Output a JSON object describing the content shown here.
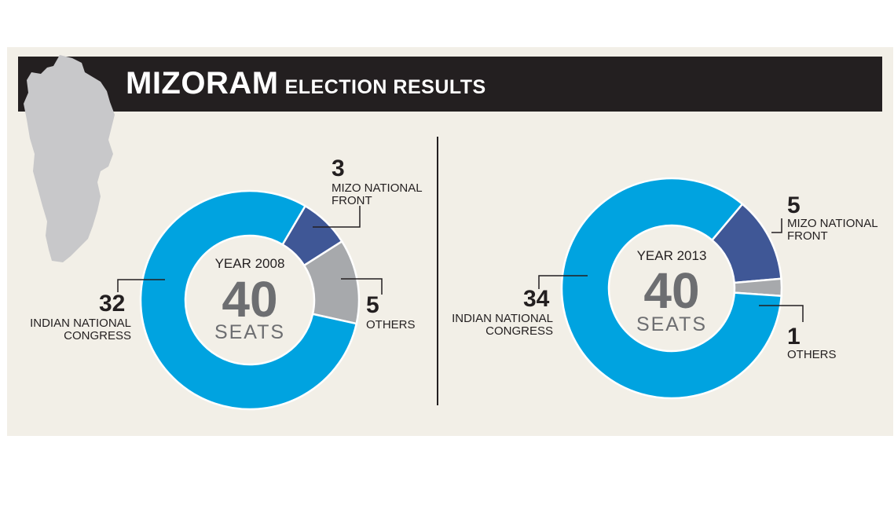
{
  "title": {
    "main": "MIZORAM",
    "sub": "ELECTION RESULTS"
  },
  "colors": {
    "inc": "#00a3e0",
    "mnf": "#3f5796",
    "others": "#a7a9ac",
    "title_bg": "#231f20",
    "panel_bg": "#f2efe7"
  },
  "chart_data": [
    {
      "type": "pie",
      "center_label": {
        "year": "YEAR 2008",
        "total": "40",
        "unit": "SEATS"
      },
      "slices": [
        {
          "label": "INDIAN NATIONAL CONGRESS",
          "value": 32
        },
        {
          "label": "MIZO NATIONAL FRONT",
          "value": 3
        },
        {
          "label": "OTHERS",
          "value": 5
        }
      ]
    },
    {
      "type": "pie",
      "center_label": {
        "year": "YEAR 2013",
        "total": "40",
        "unit": "SEATS"
      },
      "slices": [
        {
          "label": "INDIAN NATIONAL CONGRESS",
          "value": 34
        },
        {
          "label": "MIZO NATIONAL FRONT",
          "value": 5
        },
        {
          "label": "OTHERS",
          "value": 1
        }
      ]
    }
  ],
  "labels": {
    "c2008": {
      "mnf_value": "3",
      "mnf_line1": "MIZO NATIONAL",
      "mnf_line2": "FRONT",
      "oth_value": "5",
      "oth_line1": "OTHERS",
      "inc_value": "32",
      "inc_line1": "INDIAN NATIONAL",
      "inc_line2": "CONGRESS"
    },
    "c2013": {
      "mnf_value": "5",
      "mnf_line1": "MIZO NATIONAL",
      "mnf_line2": "FRONT",
      "oth_value": "1",
      "oth_line1": "OTHERS",
      "inc_value": "34",
      "inc_line1": "INDIAN NATIONAL",
      "inc_line2": "CONGRESS"
    }
  }
}
